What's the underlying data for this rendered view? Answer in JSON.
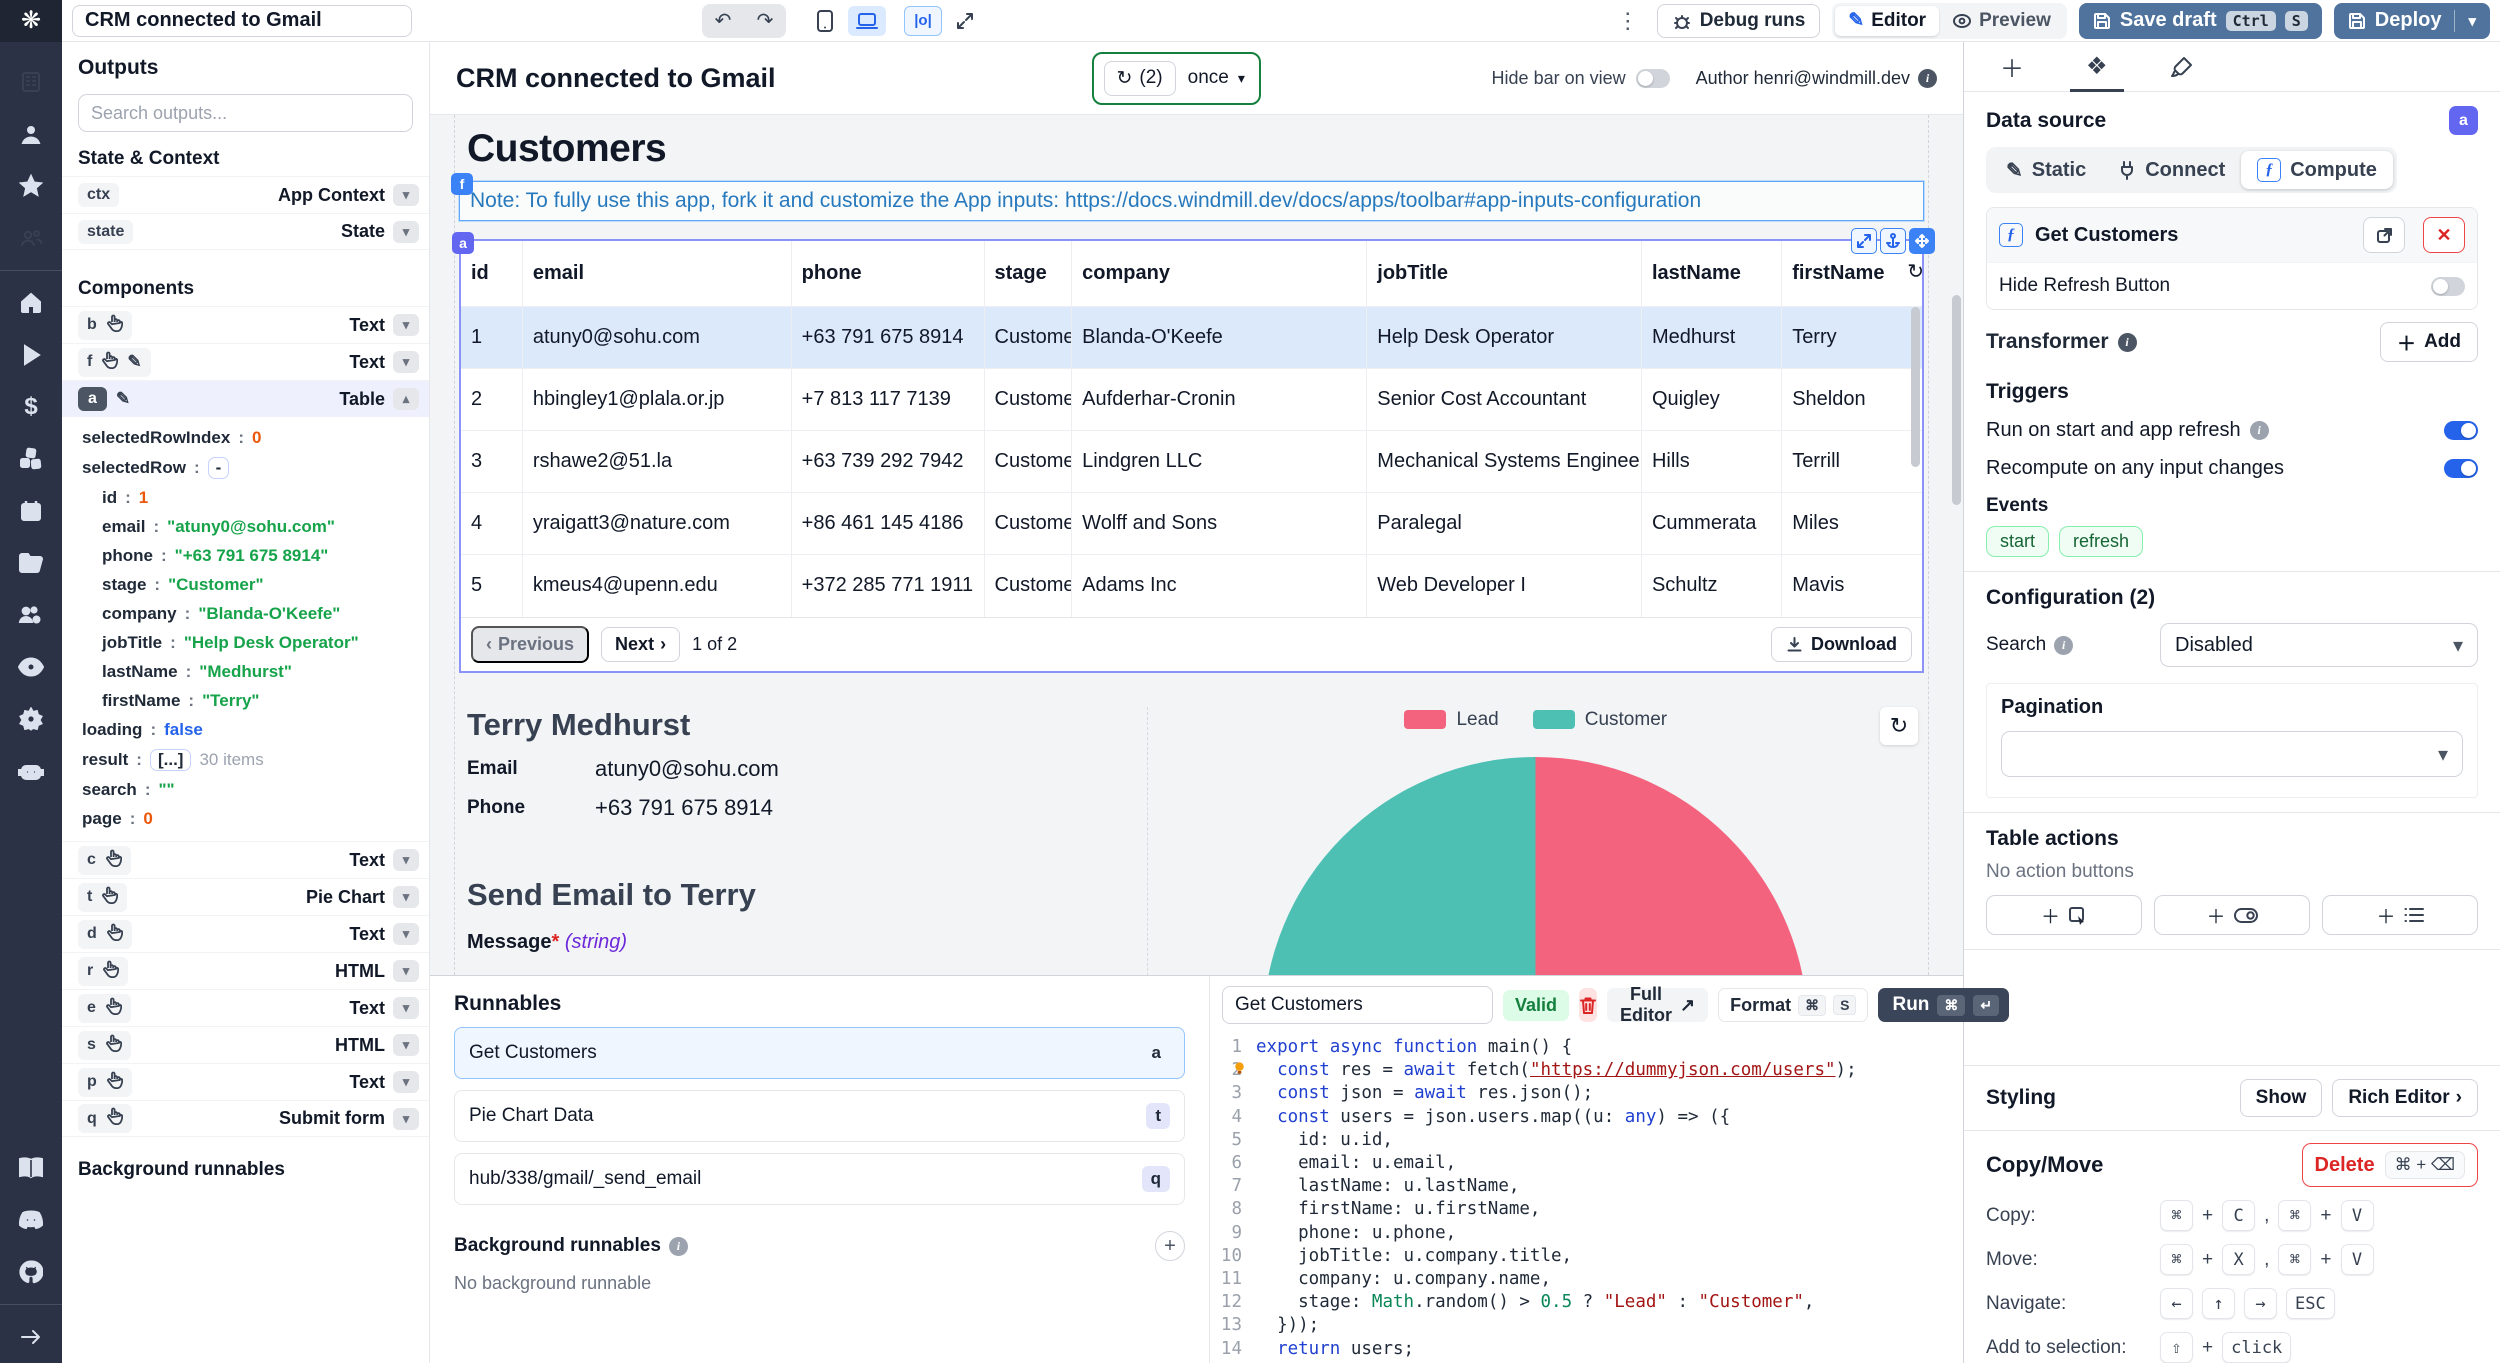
{
  "topbar": {
    "app_title": "CRM connected to Gmail",
    "debug_runs_label": "Debug runs",
    "editor_label": "Editor",
    "preview_label": "Preview",
    "save_draft_label": "Save draft",
    "save_draft_keys": [
      "Ctrl",
      "S"
    ],
    "deploy_label": "Deploy"
  },
  "left_panel": {
    "outputs_title": "Outputs",
    "search_placeholder": "Search outputs...",
    "state_context_title": "State & Context",
    "state_items": [
      {
        "id": "ctx",
        "type": "App Context"
      },
      {
        "id": "state",
        "type": "State"
      }
    ],
    "components_title": "Components",
    "components": [
      {
        "id": "b",
        "icons": [
          "hand"
        ],
        "type": "Text",
        "selected": false,
        "expanded": false
      },
      {
        "id": "f",
        "icons": [
          "hand",
          "pencil"
        ],
        "type": "Text",
        "selected": false,
        "expanded": false
      },
      {
        "id": "a",
        "icons": [
          "pencil"
        ],
        "type": "Table",
        "selected": true,
        "expanded": true
      },
      {
        "id": "c",
        "icons": [
          "hand"
        ],
        "type": "Text",
        "selected": false,
        "expanded": false
      },
      {
        "id": "t",
        "icons": [
          "hand"
        ],
        "type": "Pie Chart",
        "selected": false,
        "expanded": false
      },
      {
        "id": "d",
        "icons": [
          "hand"
        ],
        "type": "Text",
        "selected": false,
        "expanded": false
      },
      {
        "id": "r",
        "icons": [
          "hand"
        ],
        "type": "HTML",
        "selected": false,
        "expanded": false
      },
      {
        "id": "e",
        "icons": [
          "hand"
        ],
        "type": "Text",
        "selected": false,
        "expanded": false
      },
      {
        "id": "s",
        "icons": [
          "hand"
        ],
        "type": "HTML",
        "selected": false,
        "expanded": false
      },
      {
        "id": "p",
        "icons": [
          "hand"
        ],
        "type": "Text",
        "selected": false,
        "expanded": false
      },
      {
        "id": "q",
        "icons": [
          "hand"
        ],
        "type": "Submit form",
        "selected": false,
        "expanded": false
      }
    ],
    "a_state": [
      {
        "k": "selectedRowIndex",
        "v": "0",
        "t": "num",
        "i": 0
      },
      {
        "k": "selectedRow",
        "v": "-",
        "t": "chip",
        "i": 0
      },
      {
        "k": "id",
        "v": "1",
        "t": "num",
        "i": 1
      },
      {
        "k": "email",
        "v": "\"atuny0@sohu.com\"",
        "t": "str",
        "i": 1
      },
      {
        "k": "phone",
        "v": "\"+63 791 675 8914\"",
        "t": "str",
        "i": 1
      },
      {
        "k": "stage",
        "v": "\"Customer\"",
        "t": "str",
        "i": 1
      },
      {
        "k": "company",
        "v": "\"Blanda-O'Keefe\"",
        "t": "str",
        "i": 1
      },
      {
        "k": "jobTitle",
        "v": "\"Help Desk Operator\"",
        "t": "str",
        "i": 1
      },
      {
        "k": "lastName",
        "v": "\"Medhurst\"",
        "t": "str",
        "i": 1
      },
      {
        "k": "firstName",
        "v": "\"Terry\"",
        "t": "str",
        "i": 1
      },
      {
        "k": "loading",
        "v": "false",
        "t": "bool",
        "i": 0
      },
      {
        "k": "result",
        "v": "[...]",
        "t": "chip",
        "suffix": "30 items",
        "i": 0
      },
      {
        "k": "search",
        "v": "\"\"",
        "t": "str",
        "i": 0
      },
      {
        "k": "page",
        "v": "0",
        "t": "num",
        "i": 0
      }
    ],
    "background_title": "Background runnables"
  },
  "canvas": {
    "title": "CRM connected to Gmail",
    "refresh_count": "(2)",
    "refresh_mode": "once",
    "hide_bar_label": "Hide bar on view",
    "author_label": "Author henri@windmill.dev",
    "app_heading": "Customers",
    "note_text": "Note: To fully use this app, fork it and customize the App inputs: https://docs.windmill.dev/docs/apps/toolbar#app-inputs-configuration",
    "note_badge": "f",
    "table_badge": "a",
    "table": {
      "columns": [
        "id",
        "email",
        "phone",
        "stage",
        "company",
        "jobTitle",
        "lastName",
        "firstName"
      ],
      "rows": [
        [
          "1",
          "atuny0@sohu.com",
          "+63 791 675 8914",
          "Customer",
          "Blanda-O'Keefe",
          "Help Desk Operator",
          "Medhurst",
          "Terry"
        ],
        [
          "2",
          "hbingley1@plala.or.jp",
          "+7 813 117 7139",
          "Customer",
          "Aufderhar-Cronin",
          "Senior Cost Accountant",
          "Quigley",
          "Sheldon"
        ],
        [
          "3",
          "rshawe2@51.la",
          "+63 739 292 7942",
          "Customer",
          "Lindgren LLC",
          "Mechanical Systems Engineer",
          "Hills",
          "Terrill"
        ],
        [
          "4",
          "yraigatt3@nature.com",
          "+86 461 145 4186",
          "Customer",
          "Wolff and Sons",
          "Paralegal",
          "Cummerata",
          "Miles"
        ],
        [
          "5",
          "kmeus4@upenn.edu",
          "+372 285 771 1911",
          "Customer",
          "Adams Inc",
          "Web Developer I",
          "Schultz",
          "Mavis"
        ]
      ],
      "selected_row_index": 0
    },
    "pagination": {
      "previous": "Previous",
      "next": "Next",
      "info": "1 of 2",
      "download": "Download"
    },
    "detail": {
      "name": "Terry Medhurst",
      "email_label": "Email",
      "email_value": "atuny0@sohu.com",
      "phone_label": "Phone",
      "phone_value": "+63 791 675 8914",
      "send_heading": "Send Email to Terry",
      "message_label": "Message",
      "message_required": "*",
      "message_type": "(string)"
    }
  },
  "chart_data": {
    "type": "pie",
    "labels": [
      "Lead",
      "Customer"
    ],
    "values": [
      48,
      52
    ],
    "unit": "percent (estimated from arc angles; table result has 30 items)",
    "colors": [
      "#f4637e",
      "#4dc0b3"
    ],
    "legend_position": "top",
    "title": ""
  },
  "runnables": {
    "title": "Runnables",
    "items": [
      {
        "label": "Get Customers",
        "badge": "a",
        "selected": true
      },
      {
        "label": "Pie Chart Data",
        "badge": "t",
        "selected": false
      },
      {
        "label": "hub/338/gmail/_send_email",
        "badge": "q",
        "selected": false
      }
    ],
    "background_title": "Background runnables",
    "background_empty": "No background runnable"
  },
  "editor": {
    "name_value": "Get Customers",
    "valid_label": "Valid",
    "full_editor_label": "Full Editor",
    "format_label": "Format",
    "format_keys": [
      "⌘",
      "S"
    ],
    "run_label": "Run",
    "run_keys": [
      "⌘",
      "↵"
    ],
    "code_lines": [
      "export async function main() {",
      "  const res = await fetch(\"https://dummyjson.com/users\");",
      "  const json = await res.json();",
      "  const users = json.users.map((u: any) => ({",
      "    id: u.id,",
      "    email: u.email,",
      "    lastName: u.lastName,",
      "    firstName: u.firstName,",
      "    phone: u.phone,",
      "    jobTitle: u.company.title,",
      "    company: u.company.name,",
      "    stage: Math.random() > 0.5 ? \"Lead\" : \"Customer\",",
      "  }));",
      "  return users;",
      "}"
    ]
  },
  "right_panel": {
    "data_source_title": "Data source",
    "component_badge": "a",
    "modes": [
      {
        "label": "Static",
        "icon": "pen",
        "active": false
      },
      {
        "label": "Connect",
        "icon": "plug",
        "active": false
      },
      {
        "label": "Compute",
        "icon": "function",
        "active": true
      }
    ],
    "runnable_name": "Get Customers",
    "hide_refresh_label": "Hide Refresh Button",
    "transformer_title": "Transformer",
    "add_label": "Add",
    "triggers_title": "Triggers",
    "trigger_rows": [
      {
        "label": "Run on start and app refresh",
        "info": true,
        "on": true
      },
      {
        "label": "Recompute on any input changes",
        "info": false,
        "on": true
      }
    ],
    "events_label": "Events",
    "events": [
      "start",
      "refresh"
    ],
    "configuration_title": "Configuration (2)",
    "search_label": "Search",
    "search_value": "Disabled",
    "pagination_title": "Pagination",
    "table_actions_title": "Table actions",
    "table_actions_empty": "No action buttons",
    "styling_title": "Styling",
    "show_label": "Show",
    "rich_editor_label": "Rich Editor",
    "copy_move_title": "Copy/Move",
    "delete_label": "Delete",
    "delete_keys": [
      "⌘",
      "+",
      "⌫"
    ],
    "shortcut_rows": [
      {
        "label": "Copy:",
        "keys": [
          "⌘",
          "+",
          "C",
          ",",
          "⌘",
          "+",
          "V"
        ]
      },
      {
        "label": "Move:",
        "keys": [
          "⌘",
          "+",
          "X",
          ",",
          "⌘",
          "+",
          "V"
        ]
      },
      {
        "label": "Navigate:",
        "keys": [
          "←",
          "↑",
          "→",
          "ESC"
        ]
      },
      {
        "label": "Add to selection:",
        "keys": [
          "⇧",
          "+",
          "click"
        ]
      }
    ]
  }
}
